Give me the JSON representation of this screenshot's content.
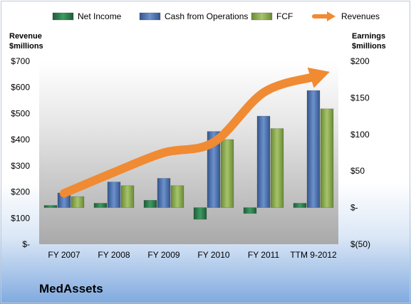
{
  "company": "MedAssets",
  "chart_data": {
    "type": "bar",
    "categories": [
      "FY 2007",
      "FY 2008",
      "FY 2009",
      "FY 2010",
      "FY 2011",
      "TTM 9-2012"
    ],
    "left_axis": {
      "title_line1": "Revenue",
      "title_line2": "$millions",
      "tick_labels": [
        "$-",
        "$100",
        "$200",
        "$300",
        "$400",
        "$500",
        "$600",
        "$700"
      ],
      "ylim": [
        0,
        700
      ]
    },
    "right_axis": {
      "title_line1": "Earnings",
      "title_line2": "$millions",
      "tick_labels": [
        "$(50)",
        "$-",
        "$50",
        "$100",
        "$150",
        "$200"
      ],
      "ylim": [
        -50,
        200
      ]
    },
    "series": [
      {
        "name": "Net Income",
        "axis": "right",
        "color": "#2e7d4f",
        "values": [
          3,
          6,
          10,
          -16,
          -8,
          6
        ]
      },
      {
        "name": "Cash from Operations",
        "axis": "right",
        "color": "#4a72b0",
        "values": [
          20,
          35,
          40,
          104,
          125,
          160
        ]
      },
      {
        "name": "FCF",
        "axis": "right",
        "color": "#8aaa4e",
        "values": [
          15,
          30,
          30,
          93,
          108,
          135
        ]
      },
      {
        "name": "Revenues",
        "axis": "left",
        "color": "#f08a33",
        "values": [
          195,
          275,
          350,
          390,
          580,
          640
        ]
      }
    ],
    "legend_position": "top",
    "grid": false
  }
}
